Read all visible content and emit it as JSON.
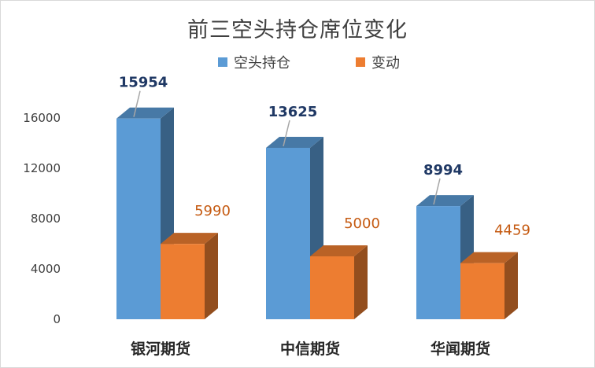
{
  "chart_data": {
    "type": "bar",
    "title": "前三空头持仓席位变化",
    "categories": [
      "银河期货",
      "中信期货",
      "华闻期货"
    ],
    "series": [
      {
        "name": "空头持仓",
        "values": [
          15954,
          13625,
          8994
        ],
        "color": "#5b9bd5"
      },
      {
        "name": "变动",
        "values": [
          5990,
          5000,
          4459
        ],
        "color": "#ed7d31"
      }
    ],
    "yticks": [
      0,
      4000,
      8000,
      12000,
      16000
    ],
    "ylim": [
      0,
      16000
    ],
    "legend_position": "top",
    "grid": false,
    "style": "3d-column"
  }
}
